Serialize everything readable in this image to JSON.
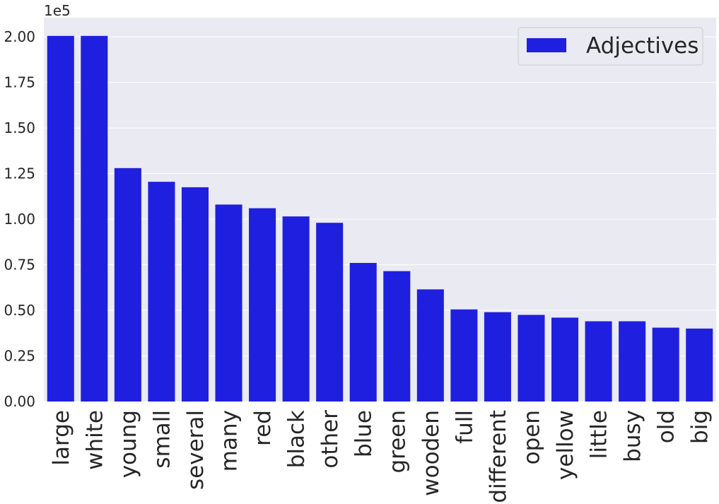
{
  "chart_data": {
    "type": "bar",
    "categories": [
      "large",
      "white",
      "young",
      "small",
      "several",
      "many",
      "red",
      "black",
      "other",
      "blue",
      "green",
      "wooden",
      "full",
      "different",
      "open",
      "yellow",
      "little",
      "busy",
      "old",
      "big"
    ],
    "series": [
      {
        "name": "Adjectives",
        "color": "#1f1fe0",
        "values": [
          200500,
          200500,
          128000,
          120500,
          117500,
          108000,
          106000,
          101500,
          98000,
          76000,
          71500,
          61500,
          50500,
          49000,
          47500,
          46000,
          44000,
          44000,
          40500,
          40000
        ]
      }
    ],
    "scale_label": "1e5",
    "yticks": [
      0,
      25000,
      50000,
      75000,
      100000,
      125000,
      150000,
      175000,
      200000
    ],
    "ytick_labels": [
      "0.00",
      "0.25",
      "0.50",
      "0.75",
      "1.00",
      "1.25",
      "1.50",
      "1.75",
      "2.00"
    ],
    "ylim": [
      0,
      210500
    ],
    "grid": true,
    "legend": "top-right",
    "title": "",
    "xlabel": "",
    "ylabel": ""
  },
  "colors": {
    "plot_background": "#eaeaf2",
    "grid": "#ffffff",
    "text": "#262626"
  }
}
